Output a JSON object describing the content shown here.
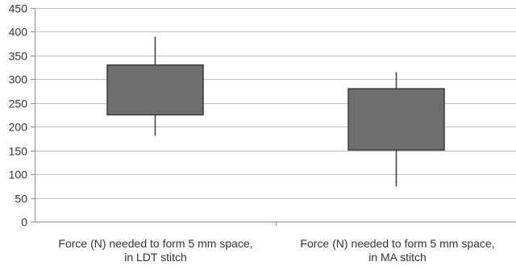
{
  "chart_data": {
    "type": "boxplot",
    "title": "",
    "xlabel": "",
    "ylabel": "",
    "ylim": [
      0,
      450
    ],
    "y_ticks": [
      0,
      50,
      100,
      150,
      200,
      250,
      300,
      350,
      400,
      450
    ],
    "y_tick_labels": [
      "0",
      "50",
      "100",
      "150",
      "200",
      "250",
      "300",
      "350",
      "400",
      "450"
    ],
    "grid": true,
    "legend": "none",
    "categories": [
      {
        "line1": "Force (N) needed to form 5 mm space,",
        "line2": "in LDT stitch"
      },
      {
        "line1": "Force (N) needed to form 5 mm space,",
        "line2": "in MA stitch"
      }
    ],
    "boxes": [
      {
        "min": 181,
        "q1": 225,
        "q3": 330,
        "max": 390
      },
      {
        "min": 74,
        "q1": 151,
        "q3": 280,
        "max": 315
      }
    ],
    "colors": {
      "box_fill": "#6e6e6e",
      "box_stroke": "#3a3a3a",
      "whisker": "#3a3a3a",
      "grid": "#bdbdbd",
      "axis": "#8c8c8c",
      "text": "#333333"
    }
  }
}
